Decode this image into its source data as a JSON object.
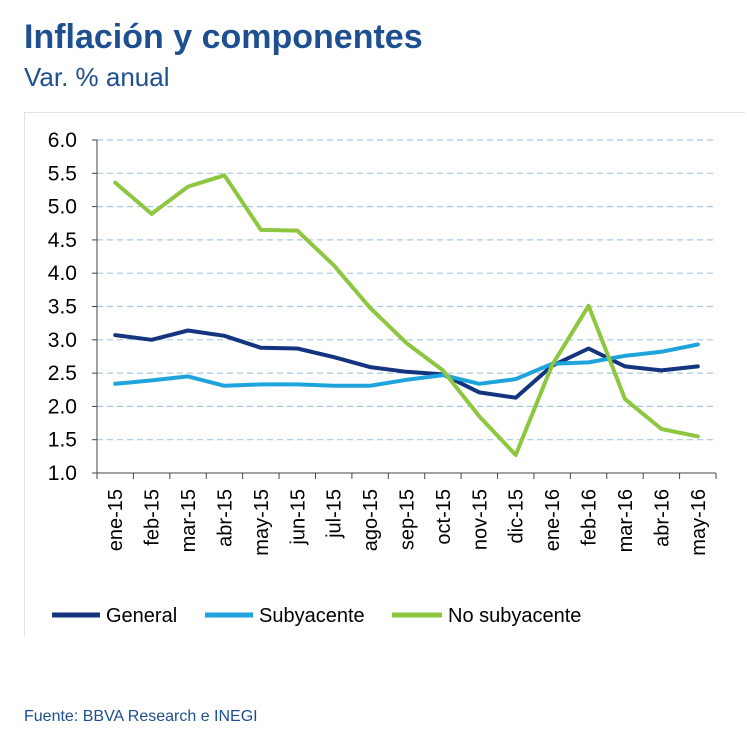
{
  "header": {
    "title": "Inflación y componentes",
    "subtitle": "Var. % anual"
  },
  "footer": {
    "source_label": "Fuente:",
    "source_text": "BBVA Research e INEGI"
  },
  "colors": {
    "title": "#1d4f91",
    "general": "#14347f",
    "subyacente": "#1ea3dc",
    "no_subyacente": "#8dc63f",
    "grid": "#a9c7e2",
    "axis": "#444444"
  },
  "chart_data": {
    "type": "line",
    "title": "Inflación y componentes",
    "subtitle": "Var. % anual",
    "xlabel": "",
    "ylabel": "",
    "ylim": [
      1.0,
      6.0
    ],
    "yticks": [
      "6.0",
      "5.5",
      "5.0",
      "4.5",
      "4.0",
      "3.5",
      "3.0",
      "2.5",
      "2.0",
      "1.5",
      "1.0"
    ],
    "grid": true,
    "legend_position": "bottom",
    "categories": [
      "ene-15",
      "feb-15",
      "mar-15",
      "abr-15",
      "may-15",
      "jun-15",
      "jul-15",
      "ago-15",
      "sep-15",
      "oct-15",
      "nov-15",
      "dic-15",
      "ene-16",
      "feb-16",
      "mar-16",
      "abr-16",
      "may-16"
    ],
    "series": [
      {
        "name": "General",
        "color": "#14347f",
        "values": [
          3.07,
          3.0,
          3.14,
          3.06,
          2.88,
          2.87,
          2.74,
          2.59,
          2.52,
          2.48,
          2.21,
          2.13,
          2.61,
          2.87,
          2.6,
          2.54,
          2.6
        ]
      },
      {
        "name": "Subyacente",
        "color": "#1ea3dc",
        "values": [
          2.34,
          2.39,
          2.45,
          2.31,
          2.33,
          2.33,
          2.31,
          2.31,
          2.4,
          2.47,
          2.34,
          2.41,
          2.64,
          2.66,
          2.76,
          2.82,
          2.93
        ]
      },
      {
        "name": "No subyacente",
        "color": "#8dc63f",
        "values": [
          5.36,
          4.89,
          5.3,
          5.47,
          4.65,
          4.64,
          4.12,
          3.48,
          2.95,
          2.54,
          1.85,
          1.27,
          2.62,
          3.51,
          2.11,
          1.66,
          1.55
        ]
      }
    ]
  }
}
